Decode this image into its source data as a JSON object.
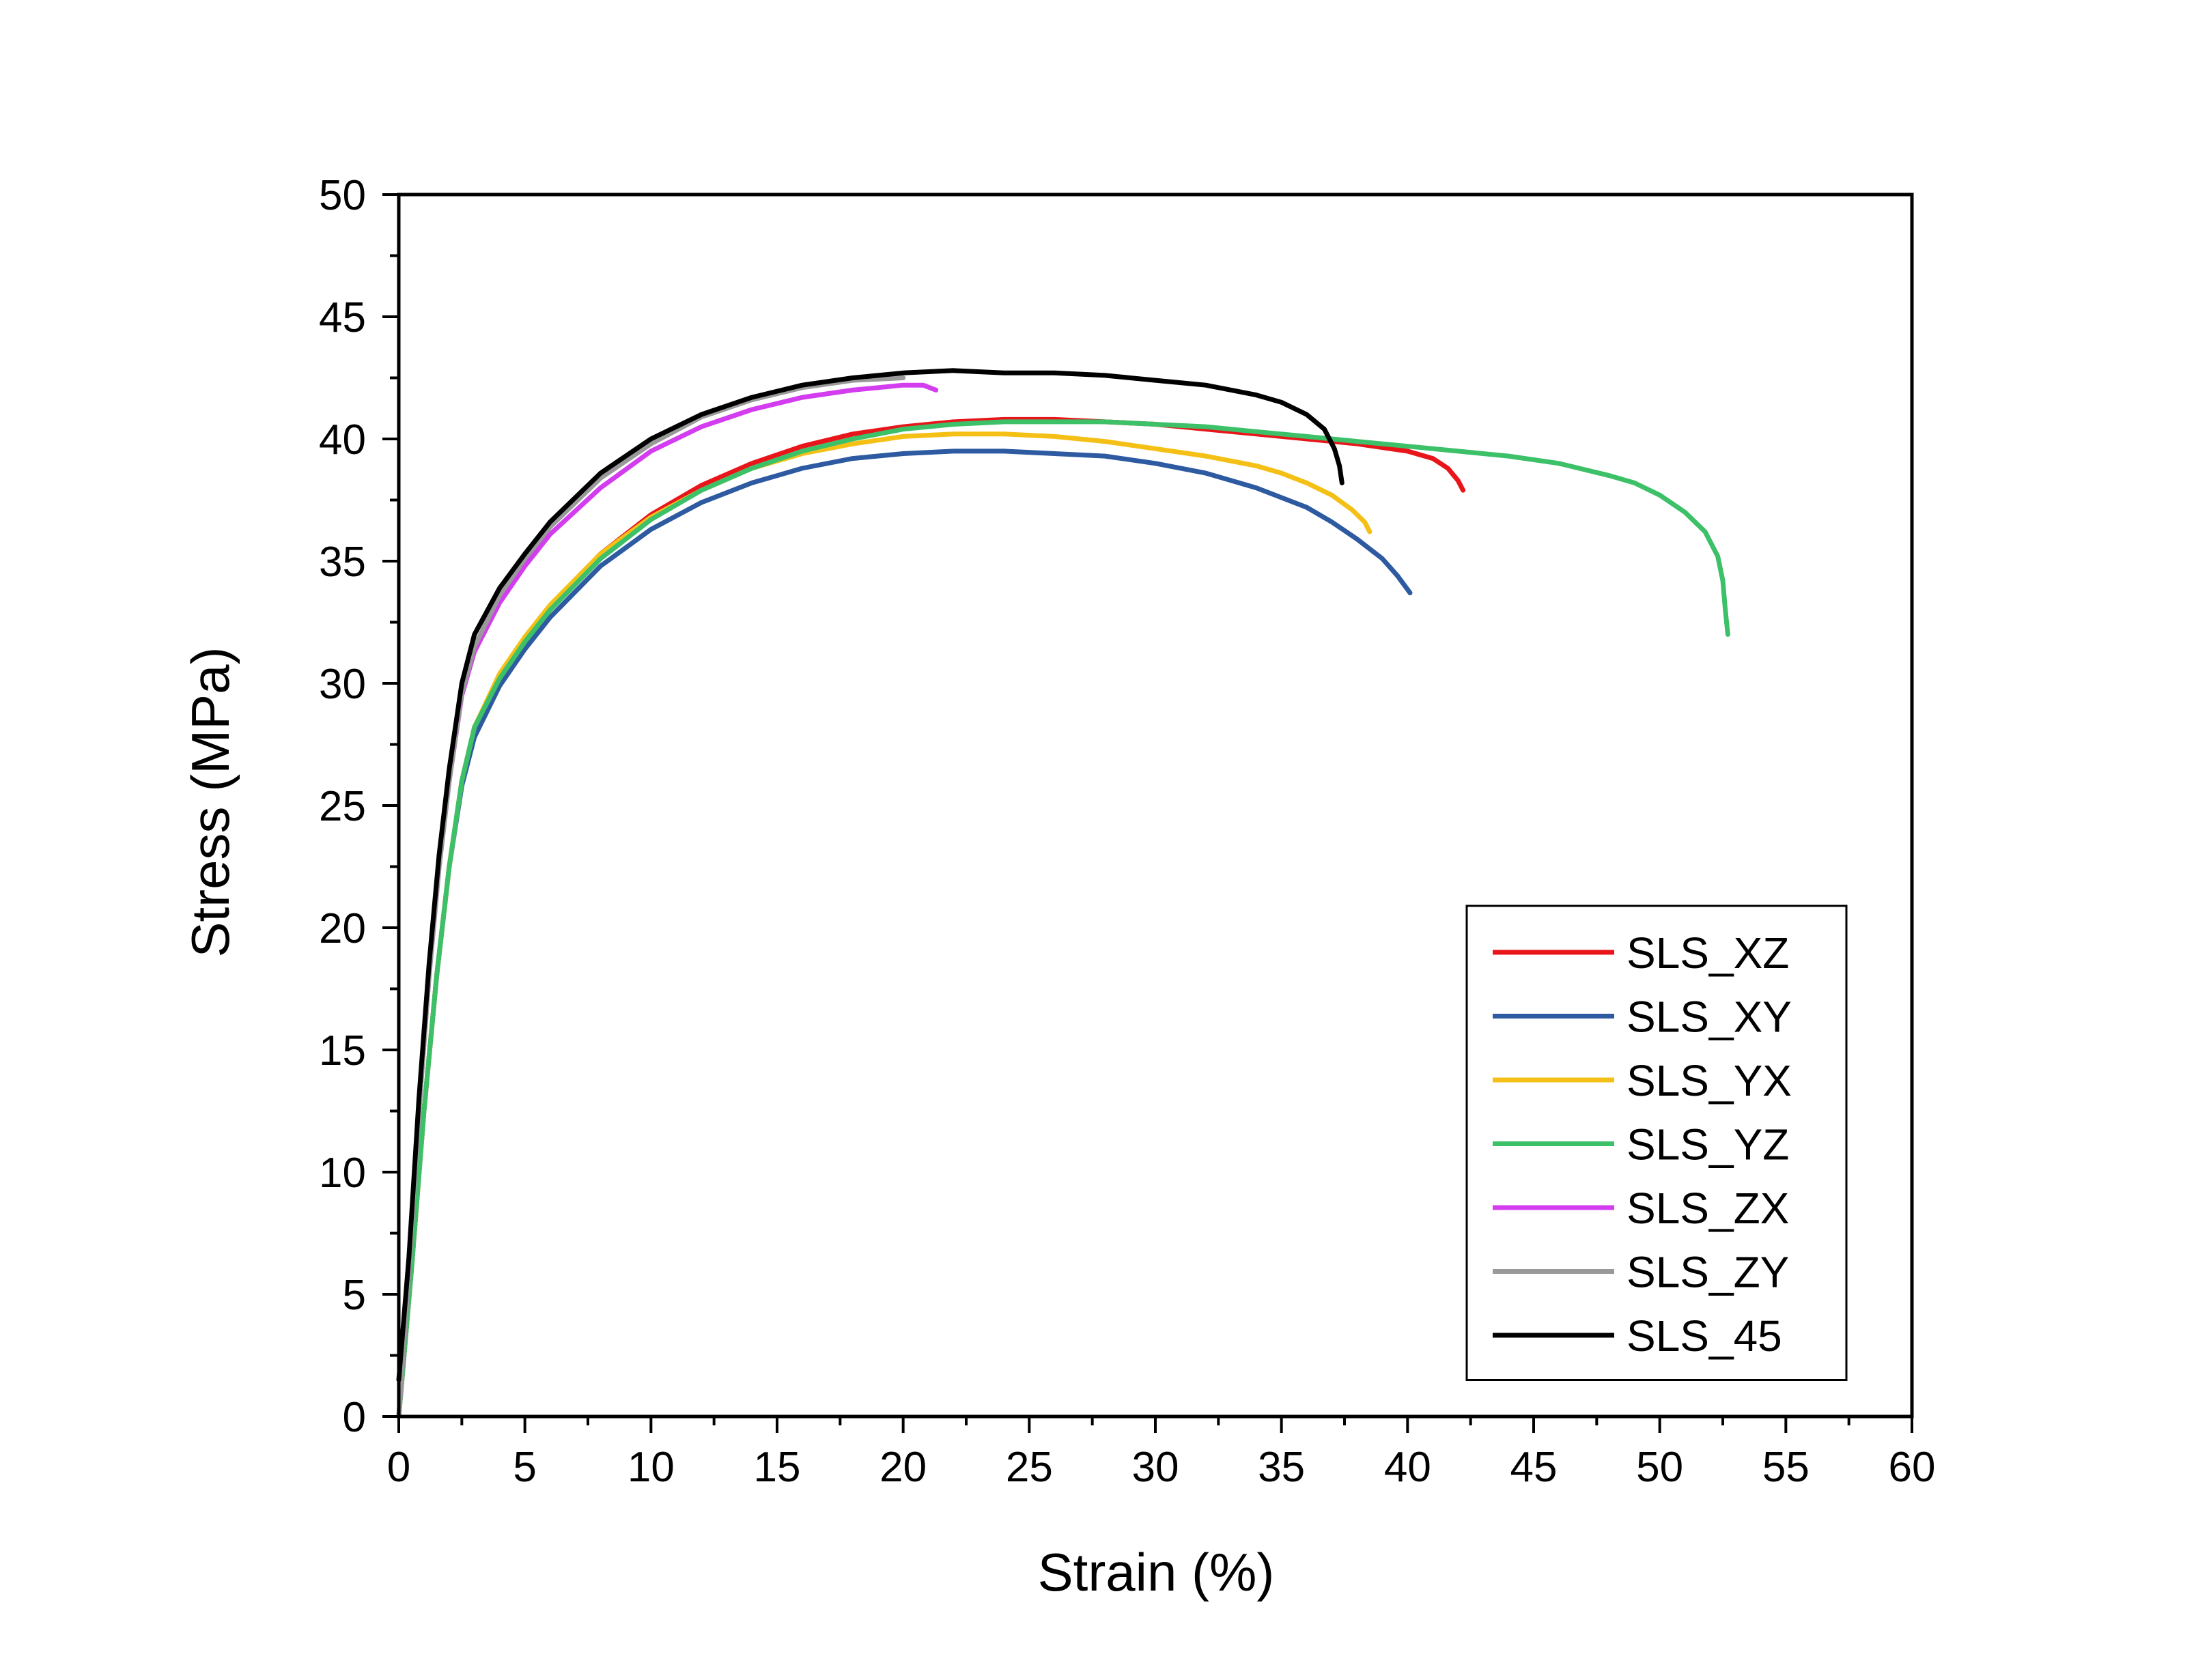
{
  "chart_data": {
    "type": "line",
    "title": "",
    "xlabel": "Strain (%)",
    "ylabel": "Stress (MPa)",
    "xlim": [
      0,
      60
    ],
    "ylim": [
      0,
      50
    ],
    "x_ticks": [
      0,
      5,
      10,
      15,
      20,
      25,
      30,
      35,
      40,
      45,
      50,
      55,
      60
    ],
    "y_ticks": [
      0,
      5,
      10,
      15,
      20,
      25,
      30,
      35,
      40,
      45,
      50
    ],
    "grid": false,
    "legend_position": "bottom-right",
    "series": [
      {
        "name": "SLS_XZ",
        "color": "#e8161b",
        "points": [
          [
            0,
            0
          ],
          [
            0.5,
            6
          ],
          [
            1,
            12.5
          ],
          [
            1.5,
            18
          ],
          [
            2,
            22.5
          ],
          [
            2.5,
            26
          ],
          [
            3,
            28.2
          ],
          [
            4,
            30.3
          ],
          [
            5,
            31.8
          ],
          [
            6,
            33.1
          ],
          [
            8,
            35.3
          ],
          [
            10,
            36.9
          ],
          [
            12,
            38.1
          ],
          [
            14,
            39.0
          ],
          [
            16,
            39.7
          ],
          [
            18,
            40.2
          ],
          [
            20,
            40.5
          ],
          [
            22,
            40.7
          ],
          [
            24,
            40.8
          ],
          [
            26,
            40.8
          ],
          [
            28,
            40.7
          ],
          [
            30,
            40.6
          ],
          [
            32,
            40.4
          ],
          [
            34,
            40.2
          ],
          [
            36,
            40.0
          ],
          [
            38,
            39.8
          ],
          [
            40,
            39.5
          ],
          [
            41,
            39.2
          ],
          [
            41.6,
            38.8
          ],
          [
            42.0,
            38.3
          ],
          [
            42.2,
            37.9
          ]
        ]
      },
      {
        "name": "SLS_XY",
        "color": "#2d5aa0",
        "points": [
          [
            0,
            0
          ],
          [
            0.5,
            6
          ],
          [
            1,
            12.5
          ],
          [
            1.5,
            18
          ],
          [
            2,
            22.5
          ],
          [
            2.5,
            25.8
          ],
          [
            3,
            27.8
          ],
          [
            4,
            29.9
          ],
          [
            5,
            31.4
          ],
          [
            6,
            32.7
          ],
          [
            8,
            34.8
          ],
          [
            10,
            36.3
          ],
          [
            12,
            37.4
          ],
          [
            14,
            38.2
          ],
          [
            16,
            38.8
          ],
          [
            18,
            39.2
          ],
          [
            20,
            39.4
          ],
          [
            22,
            39.5
          ],
          [
            24,
            39.5
          ],
          [
            26,
            39.4
          ],
          [
            28,
            39.3
          ],
          [
            30,
            39.0
          ],
          [
            32,
            38.6
          ],
          [
            34,
            38.0
          ],
          [
            36,
            37.2
          ],
          [
            37,
            36.6
          ],
          [
            38,
            35.9
          ],
          [
            39,
            35.1
          ],
          [
            39.6,
            34.4
          ],
          [
            40.1,
            33.7
          ]
        ]
      },
      {
        "name": "SLS_YX",
        "color": "#f5c016",
        "points": [
          [
            0,
            0
          ],
          [
            0.5,
            6
          ],
          [
            1,
            12.5
          ],
          [
            1.5,
            18
          ],
          [
            2,
            22.5
          ],
          [
            2.5,
            26
          ],
          [
            3,
            28.2
          ],
          [
            4,
            30.4
          ],
          [
            5,
            31.9
          ],
          [
            6,
            33.2
          ],
          [
            8,
            35.3
          ],
          [
            10,
            36.8
          ],
          [
            12,
            37.9
          ],
          [
            14,
            38.8
          ],
          [
            16,
            39.4
          ],
          [
            18,
            39.8
          ],
          [
            20,
            40.1
          ],
          [
            22,
            40.2
          ],
          [
            24,
            40.2
          ],
          [
            26,
            40.1
          ],
          [
            28,
            39.9
          ],
          [
            30,
            39.6
          ],
          [
            32,
            39.3
          ],
          [
            34,
            38.9
          ],
          [
            35,
            38.6
          ],
          [
            36,
            38.2
          ],
          [
            37,
            37.7
          ],
          [
            37.8,
            37.1
          ],
          [
            38.3,
            36.6
          ],
          [
            38.5,
            36.2
          ]
        ]
      },
      {
        "name": "SLS_YZ",
        "color": "#3cc068",
        "points": [
          [
            0,
            0
          ],
          [
            0.5,
            6
          ],
          [
            1,
            12.5
          ],
          [
            1.5,
            18
          ],
          [
            2,
            22.5
          ],
          [
            2.5,
            26
          ],
          [
            3,
            28.2
          ],
          [
            4,
            30.2
          ],
          [
            5,
            31.7
          ],
          [
            6,
            33.0
          ],
          [
            8,
            35.1
          ],
          [
            10,
            36.7
          ],
          [
            12,
            37.9
          ],
          [
            14,
            38.8
          ],
          [
            16,
            39.5
          ],
          [
            18,
            40.0
          ],
          [
            20,
            40.4
          ],
          [
            22,
            40.6
          ],
          [
            24,
            40.7
          ],
          [
            26,
            40.7
          ],
          [
            28,
            40.7
          ],
          [
            30,
            40.6
          ],
          [
            32,
            40.5
          ],
          [
            34,
            40.3
          ],
          [
            36,
            40.1
          ],
          [
            38,
            39.9
          ],
          [
            40,
            39.7
          ],
          [
            42,
            39.5
          ],
          [
            44,
            39.3
          ],
          [
            46,
            39.0
          ],
          [
            48,
            38.5
          ],
          [
            49,
            38.2
          ],
          [
            50,
            37.7
          ],
          [
            51,
            37.0
          ],
          [
            51.8,
            36.2
          ],
          [
            52.3,
            35.2
          ],
          [
            52.5,
            34.2
          ],
          [
            52.6,
            33.0
          ],
          [
            52.7,
            32.0
          ]
        ]
      },
      {
        "name": "SLS_ZX",
        "color": "#d43cf0",
        "points": [
          [
            0,
            0
          ],
          [
            0.4,
            6
          ],
          [
            0.8,
            12.5
          ],
          [
            1.2,
            18
          ],
          [
            1.6,
            22.5
          ],
          [
            2,
            26
          ],
          [
            2.5,
            29.5
          ],
          [
            3,
            31.3
          ],
          [
            4,
            33.3
          ],
          [
            5,
            34.8
          ],
          [
            6,
            36.1
          ],
          [
            8,
            38.0
          ],
          [
            10,
            39.5
          ],
          [
            12,
            40.5
          ],
          [
            14,
            41.2
          ],
          [
            16,
            41.7
          ],
          [
            18,
            42.0
          ],
          [
            19,
            42.1
          ],
          [
            20,
            42.2
          ],
          [
            20.8,
            42.2
          ],
          [
            21.3,
            42.0
          ]
        ]
      },
      {
        "name": "SLS_ZY",
        "color": "#999999",
        "points": [
          [
            0,
            0
          ],
          [
            0.4,
            6
          ],
          [
            0.8,
            12.5
          ],
          [
            1.2,
            18
          ],
          [
            1.6,
            22.5
          ],
          [
            2,
            26
          ],
          [
            2.5,
            29.6
          ],
          [
            3,
            31.5
          ],
          [
            4,
            33.6
          ],
          [
            5,
            35.1
          ],
          [
            6,
            36.4
          ],
          [
            8,
            38.4
          ],
          [
            10,
            39.8
          ],
          [
            12,
            40.9
          ],
          [
            14,
            41.6
          ],
          [
            16,
            42.1
          ],
          [
            18,
            42.4
          ],
          [
            20,
            42.5
          ]
        ]
      },
      {
        "name": "SLS_45",
        "color": "#000000",
        "points": [
          [
            0,
            1.5
          ],
          [
            0.4,
            6.5
          ],
          [
            0.8,
            13
          ],
          [
            1.2,
            18.5
          ],
          [
            1.6,
            23
          ],
          [
            2,
            26.5
          ],
          [
            2.5,
            30
          ],
          [
            3,
            32
          ],
          [
            4,
            33.9
          ],
          [
            5,
            35.3
          ],
          [
            6,
            36.6
          ],
          [
            8,
            38.6
          ],
          [
            10,
            40.0
          ],
          [
            12,
            41.0
          ],
          [
            14,
            41.7
          ],
          [
            16,
            42.2
          ],
          [
            18,
            42.5
          ],
          [
            20,
            42.7
          ],
          [
            22,
            42.8
          ],
          [
            24,
            42.7
          ],
          [
            26,
            42.7
          ],
          [
            28,
            42.6
          ],
          [
            30,
            42.4
          ],
          [
            32,
            42.2
          ],
          [
            34,
            41.8
          ],
          [
            35,
            41.5
          ],
          [
            36,
            41.0
          ],
          [
            36.7,
            40.4
          ],
          [
            37.1,
            39.6
          ],
          [
            37.3,
            38.9
          ],
          [
            37.4,
            38.2
          ]
        ]
      }
    ]
  }
}
